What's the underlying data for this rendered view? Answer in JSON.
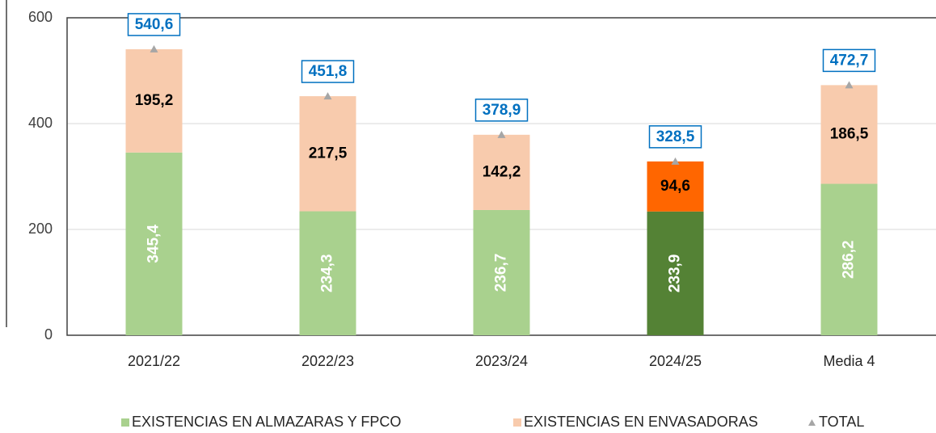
{
  "chart_data": {
    "type": "stacked_bar",
    "categories": [
      "2021/22",
      "2022/23",
      "2023/24",
      "2024/25",
      "Media 4"
    ],
    "series": [
      {
        "name": "EXISTENCIAS EN ALMAZARAS Y FPCO",
        "color": "#a9d18e",
        "colors": [
          "#a9d18e",
          "#a9d18e",
          "#a9d18e",
          "#548235",
          "#a9d18e"
        ],
        "values": [
          345.4,
          234.3,
          236.7,
          233.9,
          286.2
        ],
        "value_labels": [
          "345,4",
          "234,3",
          "236,7",
          "233,9",
          "286,2"
        ]
      },
      {
        "name": "EXISTENCIAS EN ENVASADORAS",
        "color": "#f8cbad",
        "colors": [
          "#f8cbad",
          "#f8cbad",
          "#f8cbad",
          "#ff6600",
          "#f8cbad"
        ],
        "values": [
          195.2,
          217.5,
          142.2,
          94.6,
          186.5
        ],
        "value_labels": [
          "195,2",
          "217,5",
          "142,2",
          "94,6",
          "186,5"
        ]
      },
      {
        "name": "TOTAL",
        "color": "#a6a6a6",
        "marker": "triangle",
        "values": [
          540.6,
          451.8,
          378.9,
          328.5,
          472.7
        ],
        "value_labels": [
          "540,6",
          "451,8",
          "378,9",
          "328,5",
          "472,7"
        ]
      }
    ],
    "ylim": [
      0,
      600
    ],
    "yticks": [
      0,
      200,
      400,
      600
    ],
    "grid": true,
    "legend": "bottom"
  }
}
